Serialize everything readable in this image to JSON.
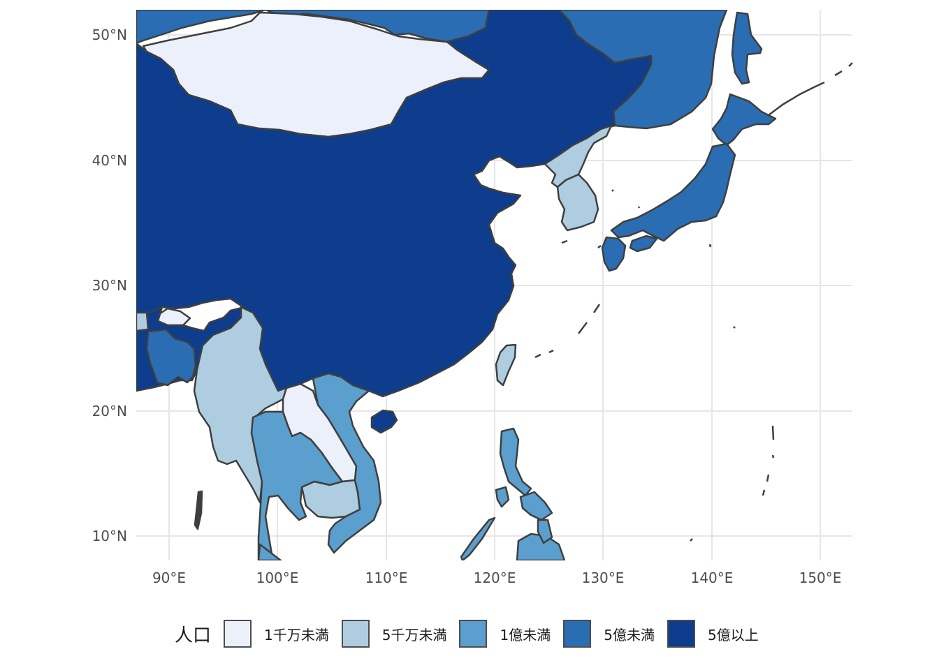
{
  "map": {
    "x_axis_labels": [
      "90°E",
      "100°E",
      "110°E",
      "120°E",
      "130°E",
      "140°E",
      "150°E"
    ],
    "y_axis_labels": [
      "50°N",
      "40°N",
      "30°N",
      "20°N",
      "10°N"
    ],
    "lon_range": [
      87,
      153
    ],
    "lat_range": [
      8,
      52
    ],
    "x_ticks": [
      90,
      100,
      110,
      120,
      130,
      140,
      150
    ],
    "y_ticks": [
      50,
      40,
      30,
      20,
      10
    ]
  },
  "legend": {
    "title": "人口",
    "items": [
      {
        "label": "1千万未満",
        "color": "#EBF0FB"
      },
      {
        "label": "5千万未満",
        "color": "#AECDE1"
      },
      {
        "label": "1億未満",
        "color": "#5A9FCE"
      },
      {
        "label": "5億未満",
        "color": "#2A6DB2"
      },
      {
        "label": "5億以上",
        "color": "#0D3D8C"
      }
    ]
  },
  "colors": {
    "border": "#3f3f3f",
    "grid": "#e6e6e6",
    "background": "#ffffff"
  }
}
